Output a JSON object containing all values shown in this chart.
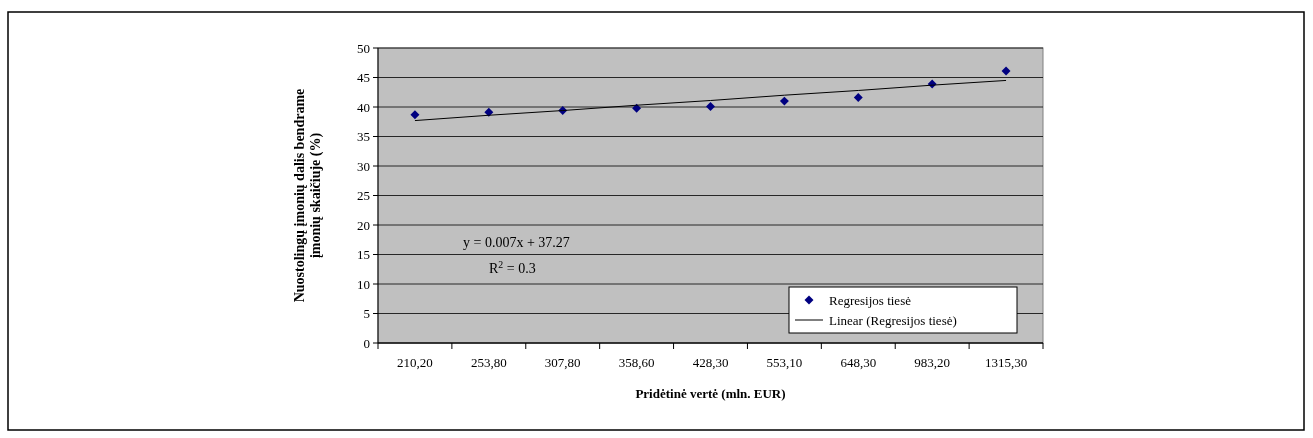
{
  "chart_data": {
    "type": "scatter",
    "xlabel": "Pridėtinė vertė (mln. EUR)",
    "ylabel": "Nuostolingų įmonių dalis bendrame\nįmonių skaičiuje (%)",
    "categories": [
      "210,20",
      "253,80",
      "307,80",
      "358,60",
      "428,30",
      "553,10",
      "648,30",
      "983,20",
      "1315,30"
    ],
    "series": [
      {
        "name": "Regresijos tiesė",
        "color": "#000080",
        "marker": "diamond",
        "values": [
          38.7,
          39.1,
          39.4,
          39.8,
          40.1,
          41.0,
          41.6,
          43.9,
          46.1
        ]
      },
      {
        "name": "Linear (Regresijos tiesė)",
        "type": "line",
        "color": "#000000",
        "line_style": "solid",
        "values": [
          37.7,
          38.6,
          39.4,
          40.3,
          41.1,
          42.0,
          42.8,
          43.7,
          44.5
        ]
      }
    ],
    "ylim": [
      0,
      50
    ],
    "yticks": [
      0,
      5,
      10,
      15,
      20,
      25,
      30,
      35,
      40,
      45,
      50
    ],
    "grid": "y",
    "legend": "bottom right",
    "annotations": [
      "y = 0.007x + 37.27",
      "R$^{2}$ = 0.3"
    ]
  }
}
